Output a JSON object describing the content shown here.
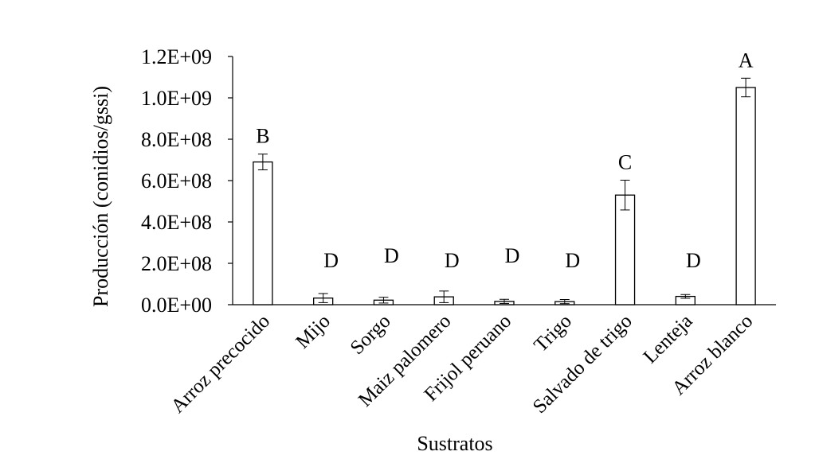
{
  "chart_data": {
    "type": "bar",
    "title": "",
    "xlabel": "Sustratos",
    "ylabel": "Producción (conidios/gssi)",
    "ylim": [
      0,
      1200000000
    ],
    "yticks": [
      0,
      200000000,
      400000000,
      600000000,
      800000000,
      1000000000,
      1200000000
    ],
    "ytick_labels": [
      "0.0E+00",
      "2.0E+08",
      "4.0E+08",
      "6.0E+08",
      "8.0E+08",
      "1.0E+09",
      "1.2E+09"
    ],
    "grid": false,
    "legend": "none",
    "bar_color": "#ffffff",
    "bar_edge_color": "#000000",
    "categories": [
      "Arroz precocido",
      "Mijo",
      "Sorgo",
      "Maiz palomero",
      "Frijol peruano",
      "Trigo",
      "Salvado de trigo",
      "Lenteja",
      "Arroz blanco"
    ],
    "values": [
      690000000,
      32000000,
      22000000,
      38000000,
      16000000,
      15000000,
      530000000,
      40000000,
      1050000000
    ],
    "errors": [
      38000000,
      22000000,
      14000000,
      28000000,
      10000000,
      10000000,
      72000000,
      9000000,
      45000000
    ],
    "group_letters": [
      "B",
      "D",
      "D",
      "D",
      "D",
      "D",
      "C",
      "D",
      "A"
    ]
  }
}
